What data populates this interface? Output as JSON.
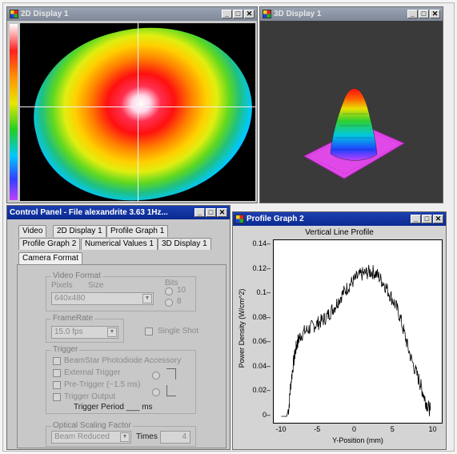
{
  "windows": {
    "display2d": {
      "title": "2D Display 1"
    },
    "display3d": {
      "title": "3D Display 1"
    },
    "control_panel": {
      "title": "Control Panel - File alexandrite 3.63 1Hz...",
      "tabs_row1": [
        "Video",
        "2D Display 1",
        "Profile Graph 1"
      ],
      "tabs_row2": [
        "Profile Graph 2",
        "Numerical Values 1",
        "3D Display 1"
      ],
      "tabs_row3": [
        "Camera Format"
      ]
    },
    "profile_graph": {
      "title": "Profile Graph 2"
    }
  },
  "window_buttons": {
    "minimize": "_",
    "maximize": "□",
    "close": "✕"
  },
  "video_format": {
    "group_label": "Video Format",
    "pixels_label": "Pixels",
    "size_label": "Size",
    "bits_label": "Bits",
    "bits_options": [
      "10",
      "8"
    ],
    "size_value": "640x480"
  },
  "framerate": {
    "group_label": "FrameRate",
    "value": "15.0 fps",
    "single_shot_label": "Single Shot"
  },
  "trigger": {
    "group_label": "Trigger",
    "photodiode_label": "BeamStar Photodiode Accessory",
    "external_label": "External Trigger",
    "pretrigger_label": "Pre-Trigger (~1.5 ms)",
    "output_label": "Trigger Output",
    "period_label": "Trigger Period ___ ms"
  },
  "optical_scaling": {
    "group_label": "Optical Scaling Factor",
    "mode_value": "Beam Reduced",
    "times_label": "Times",
    "times_value": "4"
  },
  "colors": {
    "title_active": "#0a2a92",
    "title_inactive": "#8b95a6",
    "panel_bg": "#c8c8c8",
    "display3d_bg": "#3a3a3a",
    "trace": "#000000"
  },
  "chart_data": {
    "type": "line",
    "title": "Vertical Line Profile",
    "xlabel": "Y-Position (mm)",
    "ylabel": "Power Density (W/cm^2)",
    "xlim": [
      -11,
      11
    ],
    "ylim": [
      0,
      0.14
    ],
    "xticks": [
      -10,
      -5,
      0,
      5,
      10
    ],
    "yticks": [
      0,
      0.02,
      0.04,
      0.06,
      0.08,
      0.1,
      0.12,
      0.14
    ],
    "x": [
      -10,
      -9.3,
      -9,
      -8.8,
      -8.5,
      -8.2,
      -8,
      -7.8,
      -7.5,
      -7,
      -6.5,
      -6,
      -5.5,
      -5,
      -4.5,
      -4,
      -3.5,
      -3,
      -2.5,
      -2,
      -1.5,
      -1,
      -0.5,
      0,
      0.5,
      1,
      1.5,
      2,
      2.5,
      3,
      3.5,
      4,
      4.5,
      5,
      5.5,
      6,
      6.5,
      7,
      7.5,
      8,
      8.3,
      8.6,
      8.9,
      9.2,
      9.5
    ],
    "y": [
      0.0,
      0.0,
      0.008,
      0.025,
      0.04,
      0.052,
      0.058,
      0.062,
      0.066,
      0.069,
      0.071,
      0.073,
      0.075,
      0.077,
      0.079,
      0.082,
      0.086,
      0.09,
      0.095,
      0.1,
      0.104,
      0.108,
      0.111,
      0.114,
      0.116,
      0.117,
      0.118,
      0.118,
      0.116,
      0.112,
      0.108,
      0.102,
      0.096,
      0.09,
      0.082,
      0.07,
      0.058,
      0.047,
      0.038,
      0.03,
      0.024,
      0.018,
      0.012,
      0.008,
      0.005
    ]
  }
}
